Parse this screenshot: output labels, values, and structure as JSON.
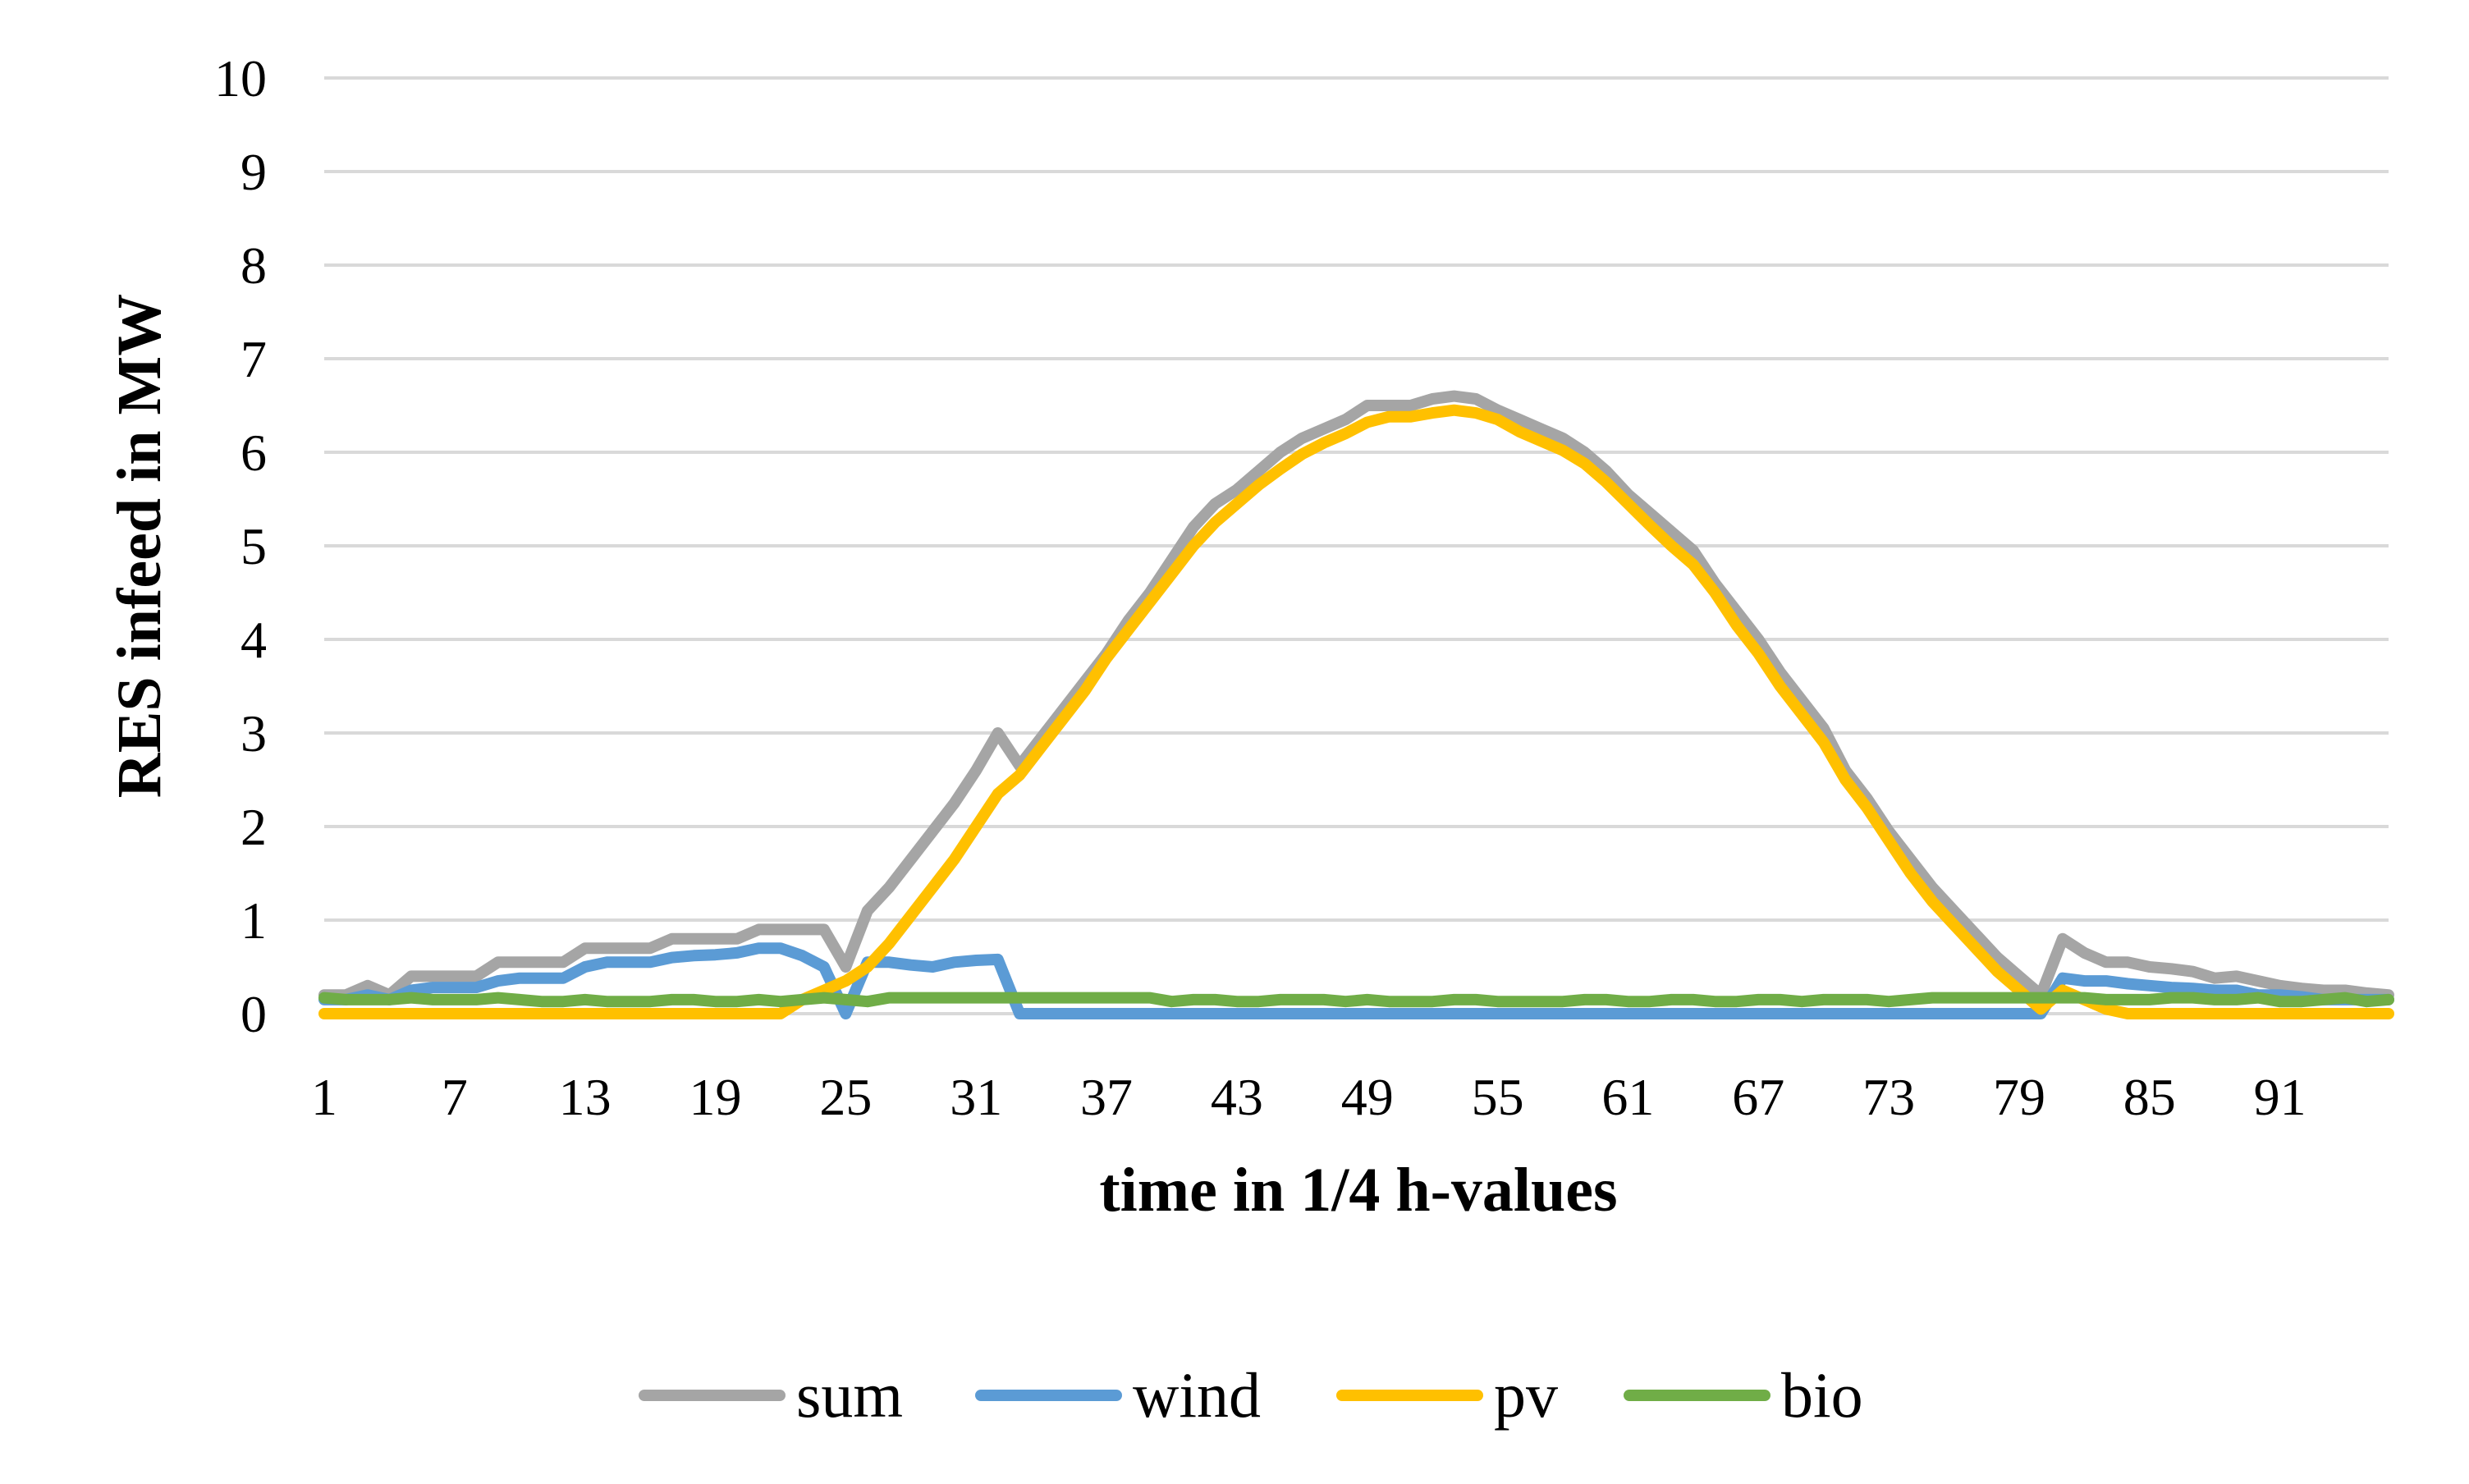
{
  "chart_data": {
    "type": "line",
    "title": "",
    "xlabel": "time in 1/4 h-values",
    "ylabel": "RES infeed in MW",
    "ylim": [
      0,
      10
    ],
    "yticks": [
      0,
      1,
      2,
      3,
      4,
      5,
      6,
      7,
      8,
      9,
      10
    ],
    "xticks": [
      1,
      7,
      13,
      19,
      25,
      31,
      37,
      43,
      49,
      55,
      61,
      67,
      73,
      79,
      85,
      91
    ],
    "xlim": [
      1,
      96
    ],
    "grid": true,
    "legend_position": "bottom",
    "series": [
      {
        "name": "sum",
        "color": "#a5a5a5",
        "values": [
          0.2,
          0.2,
          0.3,
          0.2,
          0.4,
          0.4,
          0.4,
          0.4,
          0.55,
          0.55,
          0.55,
          0.55,
          0.7,
          0.7,
          0.7,
          0.7,
          0.8,
          0.8,
          0.8,
          0.8,
          0.9,
          0.9,
          0.9,
          0.9,
          0.5,
          1.1,
          1.35,
          1.65,
          1.95,
          2.25,
          2.6,
          3.0,
          2.65,
          2.95,
          3.25,
          3.55,
          3.85,
          4.2,
          4.5,
          4.85,
          5.2,
          5.45,
          5.6,
          5.8,
          6.0,
          6.15,
          6.25,
          6.35,
          6.5,
          6.5,
          6.5,
          6.57,
          6.6,
          6.57,
          6.45,
          6.35,
          6.25,
          6.15,
          6.0,
          5.8,
          5.55,
          5.35,
          5.15,
          4.95,
          4.6,
          4.3,
          4.0,
          3.65,
          3.35,
          3.05,
          2.6,
          2.3,
          1.95,
          1.65,
          1.35,
          1.1,
          0.85,
          0.6,
          0.4,
          0.2,
          0.8,
          0.65,
          0.55,
          0.55,
          0.5,
          0.48,
          0.45,
          0.38,
          0.4,
          0.35,
          0.3,
          0.27,
          0.25,
          0.25,
          0.22,
          0.2
        ]
      },
      {
        "name": "wind",
        "color": "#5b9bd5",
        "values": [
          0.15,
          0.15,
          0.2,
          0.15,
          0.25,
          0.28,
          0.28,
          0.28,
          0.35,
          0.38,
          0.38,
          0.38,
          0.5,
          0.55,
          0.55,
          0.55,
          0.6,
          0.62,
          0.63,
          0.65,
          0.7,
          0.7,
          0.62,
          0.5,
          0.0,
          0.55,
          0.55,
          0.52,
          0.5,
          0.55,
          0.57,
          0.58,
          0,
          0,
          0,
          0,
          0,
          0,
          0,
          0,
          0,
          0,
          0,
          0,
          0,
          0,
          0,
          0,
          0,
          0,
          0,
          0,
          0,
          0,
          0,
          0,
          0,
          0,
          0,
          0,
          0,
          0,
          0,
          0,
          0,
          0,
          0,
          0,
          0,
          0,
          0,
          0,
          0,
          0,
          0,
          0,
          0,
          0,
          0,
          0,
          0.38,
          0.35,
          0.35,
          0.32,
          0.3,
          0.28,
          0.27,
          0.25,
          0.25,
          0.2,
          0.2,
          0.18,
          0.15,
          0.15,
          0.15,
          0.15
        ]
      },
      {
        "name": "pv",
        "color": "#ffc000",
        "values": [
          0,
          0,
          0,
          0,
          0,
          0,
          0,
          0,
          0,
          0,
          0,
          0,
          0,
          0,
          0,
          0,
          0,
          0,
          0,
          0,
          0,
          0,
          0.15,
          0.25,
          0.35,
          0.5,
          0.75,
          1.05,
          1.35,
          1.65,
          2.0,
          2.35,
          2.55,
          2.85,
          3.15,
          3.45,
          3.8,
          4.1,
          4.4,
          4.7,
          5.0,
          5.25,
          5.45,
          5.65,
          5.82,
          5.98,
          6.1,
          6.2,
          6.32,
          6.38,
          6.38,
          6.42,
          6.45,
          6.42,
          6.35,
          6.22,
          6.12,
          6.02,
          5.88,
          5.68,
          5.45,
          5.22,
          5.0,
          4.8,
          4.5,
          4.15,
          3.85,
          3.5,
          3.2,
          2.9,
          2.5,
          2.2,
          1.85,
          1.5,
          1.2,
          0.95,
          0.7,
          0.45,
          0.25,
          0.05,
          0.25,
          0.15,
          0.05,
          0,
          0,
          0,
          0,
          0,
          0,
          0,
          0,
          0,
          0,
          0,
          0,
          0
        ]
      },
      {
        "name": "bio",
        "color": "#70ad47",
        "values": [
          0.17,
          0.15,
          0.15,
          0.15,
          0.17,
          0.15,
          0.15,
          0.15,
          0.17,
          0.15,
          0.13,
          0.13,
          0.15,
          0.13,
          0.13,
          0.13,
          0.15,
          0.15,
          0.13,
          0.13,
          0.15,
          0.13,
          0.15,
          0.17,
          0.15,
          0.13,
          0.17,
          0.17,
          0.17,
          0.17,
          0.17,
          0.17,
          0.17,
          0.17,
          0.17,
          0.17,
          0.17,
          0.17,
          0.17,
          0.13,
          0.15,
          0.15,
          0.13,
          0.13,
          0.15,
          0.15,
          0.15,
          0.13,
          0.15,
          0.13,
          0.13,
          0.13,
          0.15,
          0.15,
          0.13,
          0.13,
          0.13,
          0.13,
          0.15,
          0.15,
          0.13,
          0.13,
          0.15,
          0.15,
          0.13,
          0.13,
          0.15,
          0.15,
          0.13,
          0.15,
          0.15,
          0.15,
          0.13,
          0.15,
          0.17,
          0.17,
          0.17,
          0.17,
          0.17,
          0.17,
          0.17,
          0.17,
          0.15,
          0.15,
          0.15,
          0.17,
          0.17,
          0.15,
          0.15,
          0.17,
          0.13,
          0.13,
          0.15,
          0.17,
          0.13,
          0.15
        ]
      }
    ]
  }
}
